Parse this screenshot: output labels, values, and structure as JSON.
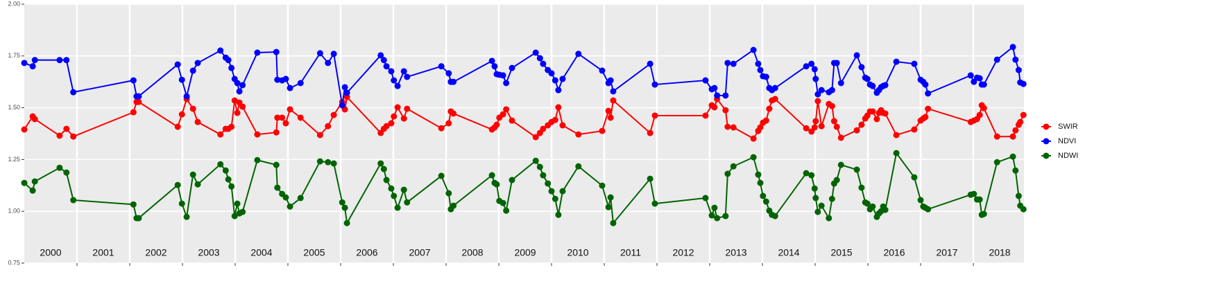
{
  "chart_data": {
    "type": "line",
    "x": [
      2000.0,
      2000.16,
      2000.2,
      2000.67,
      2000.8,
      2000.93,
      2002.07,
      2002.13,
      2002.17,
      2002.91,
      2002.99,
      2003.08,
      2003.2,
      2003.29,
      2003.72,
      2003.82,
      2003.87,
      2003.93,
      2003.99,
      2004.04,
      2004.08,
      2004.14,
      2004.42,
      2004.78,
      2004.8,
      2004.89,
      2004.96,
      2005.04,
      2005.24,
      2005.61,
      2005.76,
      2005.87,
      2006.03,
      2006.08,
      2006.12,
      2006.76,
      2006.82,
      2006.87,
      2006.96,
      2007.01,
      2007.08,
      2007.2,
      2007.26,
      2007.91,
      2008.05,
      2008.09,
      2008.14,
      2008.87,
      2008.92,
      2008.96,
      2009.01,
      2009.08,
      2009.14,
      2009.25,
      2009.7,
      2009.78,
      2009.84,
      2009.93,
      2010.0,
      2010.07,
      2010.13,
      2010.21,
      2010.51,
      2010.96,
      2011.08,
      2011.12,
      2011.17,
      2011.87,
      2011.96,
      2012.92,
      2013.04,
      2013.09,
      2013.14,
      2013.3,
      2013.34,
      2013.45,
      2013.83,
      2013.92,
      2013.96,
      2014.01,
      2014.07,
      2014.13,
      2014.18,
      2014.24,
      2014.83,
      2014.93,
      2014.99,
      2015.01,
      2015.05,
      2015.12,
      2015.26,
      2015.32,
      2015.36,
      2015.41,
      2015.49,
      2015.79,
      2015.88,
      2015.95,
      2015.99,
      2016.04,
      2016.09,
      2016.17,
      2016.21,
      2016.25,
      2016.29,
      2016.33,
      2016.54,
      2016.88,
      2017.0,
      2017.05,
      2017.09,
      2017.14,
      2017.95,
      2018.01,
      2018.07,
      2018.12,
      2018.16,
      2018.2,
      2018.45,
      2018.75,
      2018.8,
      2018.86,
      2018.89,
      2018.95
    ],
    "series": [
      {
        "name": "SWIR",
        "color": "#ff0000",
        "values": [
          1.395,
          1.458,
          1.445,
          1.365,
          1.398,
          1.361,
          1.478,
          1.528,
          1.528,
          1.408,
          1.468,
          1.542,
          1.495,
          1.431,
          1.371,
          1.398,
          1.398,
          1.408,
          1.535,
          1.475,
          1.525,
          1.505,
          1.371,
          1.381,
          1.452,
          1.452,
          1.425,
          1.492,
          1.452,
          1.368,
          1.411,
          1.465,
          1.528,
          1.492,
          1.552,
          1.378,
          1.398,
          1.411,
          1.425,
          1.458,
          1.502,
          1.448,
          1.495,
          1.401,
          1.425,
          1.482,
          1.472,
          1.395,
          1.405,
          1.418,
          1.452,
          1.468,
          1.492,
          1.438,
          1.358,
          1.378,
          1.398,
          1.415,
          1.431,
          1.441,
          1.502,
          1.415,
          1.371,
          1.388,
          1.485,
          1.452,
          1.535,
          1.378,
          1.462,
          1.462,
          1.512,
          1.502,
          1.542,
          1.488,
          1.408,
          1.405,
          1.351,
          1.388,
          1.405,
          1.428,
          1.438,
          1.495,
          1.535,
          1.542,
          1.401,
          1.385,
          1.405,
          1.435,
          1.532,
          1.411,
          1.518,
          1.508,
          1.435,
          1.408,
          1.355,
          1.391,
          1.418,
          1.448,
          1.462,
          1.482,
          1.482,
          1.445,
          1.475,
          1.488,
          1.475,
          1.472,
          1.368,
          1.395,
          1.438,
          1.448,
          1.455,
          1.495,
          1.431,
          1.438,
          1.445,
          1.465,
          1.512,
          1.498,
          1.361,
          1.361,
          1.391,
          1.418,
          1.431,
          1.465
        ]
      },
      {
        "name": "NDVI",
        "color": "#0000ff",
        "values": [
          1.716,
          1.7,
          1.73,
          1.73,
          1.73,
          1.575,
          1.632,
          1.555,
          1.555,
          1.709,
          1.635,
          1.555,
          1.679,
          1.716,
          1.776,
          1.742,
          1.73,
          1.692,
          1.639,
          1.619,
          1.579,
          1.609,
          1.766,
          1.769,
          1.635,
          1.632,
          1.639,
          1.595,
          1.619,
          1.763,
          1.716,
          1.76,
          1.512,
          1.599,
          1.572,
          1.753,
          1.73,
          1.7,
          1.676,
          1.632,
          1.605,
          1.676,
          1.649,
          1.7,
          1.666,
          1.625,
          1.625,
          1.726,
          1.7,
          1.662,
          1.659,
          1.656,
          1.619,
          1.692,
          1.766,
          1.739,
          1.712,
          1.682,
          1.666,
          1.632,
          1.585,
          1.639,
          1.76,
          1.679,
          1.619,
          1.632,
          1.579,
          1.712,
          1.612,
          1.632,
          1.589,
          1.595,
          1.559,
          1.559,
          1.716,
          1.712,
          1.779,
          1.712,
          1.682,
          1.652,
          1.649,
          1.595,
          1.585,
          1.595,
          1.7,
          1.712,
          1.686,
          1.639,
          1.565,
          1.585,
          1.575,
          1.585,
          1.716,
          1.716,
          1.619,
          1.753,
          1.696,
          1.645,
          1.639,
          1.612,
          1.605,
          1.572,
          1.585,
          1.599,
          1.605,
          1.609,
          1.722,
          1.712,
          1.635,
          1.625,
          1.612,
          1.569,
          1.656,
          1.625,
          1.645,
          1.642,
          1.612,
          1.612,
          1.732,
          1.793,
          1.732,
          1.682,
          1.622,
          1.615
        ]
      },
      {
        "name": "NDWI",
        "color": "#006400",
        "values": [
          1.137,
          1.1,
          1.144,
          1.21,
          1.187,
          1.054,
          1.033,
          0.967,
          0.967,
          1.127,
          1.037,
          0.973,
          1.177,
          1.13,
          1.227,
          1.197,
          1.154,
          1.12,
          0.977,
          1.037,
          0.99,
          0.997,
          1.247,
          1.224,
          1.114,
          1.084,
          1.067,
          1.023,
          1.064,
          1.241,
          1.237,
          1.231,
          1.043,
          1.017,
          0.943,
          1.231,
          1.204,
          1.151,
          1.11,
          1.074,
          1.017,
          1.104,
          1.043,
          1.171,
          1.087,
          1.01,
          1.027,
          1.174,
          1.137,
          1.13,
          1.05,
          1.04,
          1.003,
          1.151,
          1.244,
          1.214,
          1.174,
          1.134,
          1.097,
          1.06,
          0.983,
          1.097,
          1.217,
          1.124,
          1.02,
          1.067,
          0.943,
          1.157,
          1.037,
          1.064,
          0.98,
          1.017,
          0.967,
          0.977,
          1.181,
          1.217,
          1.261,
          1.177,
          1.137,
          1.074,
          1.047,
          1.003,
          0.983,
          0.977,
          1.184,
          1.174,
          1.11,
          1.064,
          0.997,
          1.027,
          0.967,
          1.06,
          1.134,
          1.151,
          1.224,
          1.201,
          1.114,
          1.043,
          1.037,
          1.01,
          1.023,
          0.973,
          0.99,
          1.0,
          1.023,
          1.007,
          1.281,
          1.164,
          1.054,
          1.023,
          1.017,
          1.01,
          1.08,
          1.084,
          1.057,
          1.057,
          0.983,
          0.987,
          1.237,
          1.264,
          1.197,
          1.074,
          1.027,
          1.01
        ]
      }
    ],
    "xlim": [
      2000,
      2018.96
    ],
    "xticks": [
      2001,
      2002,
      2003,
      2004,
      2005,
      2006,
      2007,
      2008,
      2009,
      2010,
      2011,
      2012,
      2013,
      2014,
      2015,
      2016,
      2017,
      2018
    ],
    "year_labels": [
      "2000",
      "2001",
      "2002",
      "2003",
      "2004",
      "2005",
      "2006",
      "2007",
      "2008",
      "2009",
      "2010",
      "2011",
      "2012",
      "2013",
      "2014",
      "2015",
      "2016",
      "2017",
      "2018"
    ],
    "ylim": [
      0.75,
      2.0
    ],
    "yticks": [
      0.75,
      {
        "value": 1.0,
        "label": "1.00"
      },
      1.25,
      {
        "value": 1.5,
        "label": "1.50"
      },
      1.75,
      {
        "value": 2.0,
        "label": "2.00"
      }
    ],
    "grid": true,
    "legend": "right"
  }
}
